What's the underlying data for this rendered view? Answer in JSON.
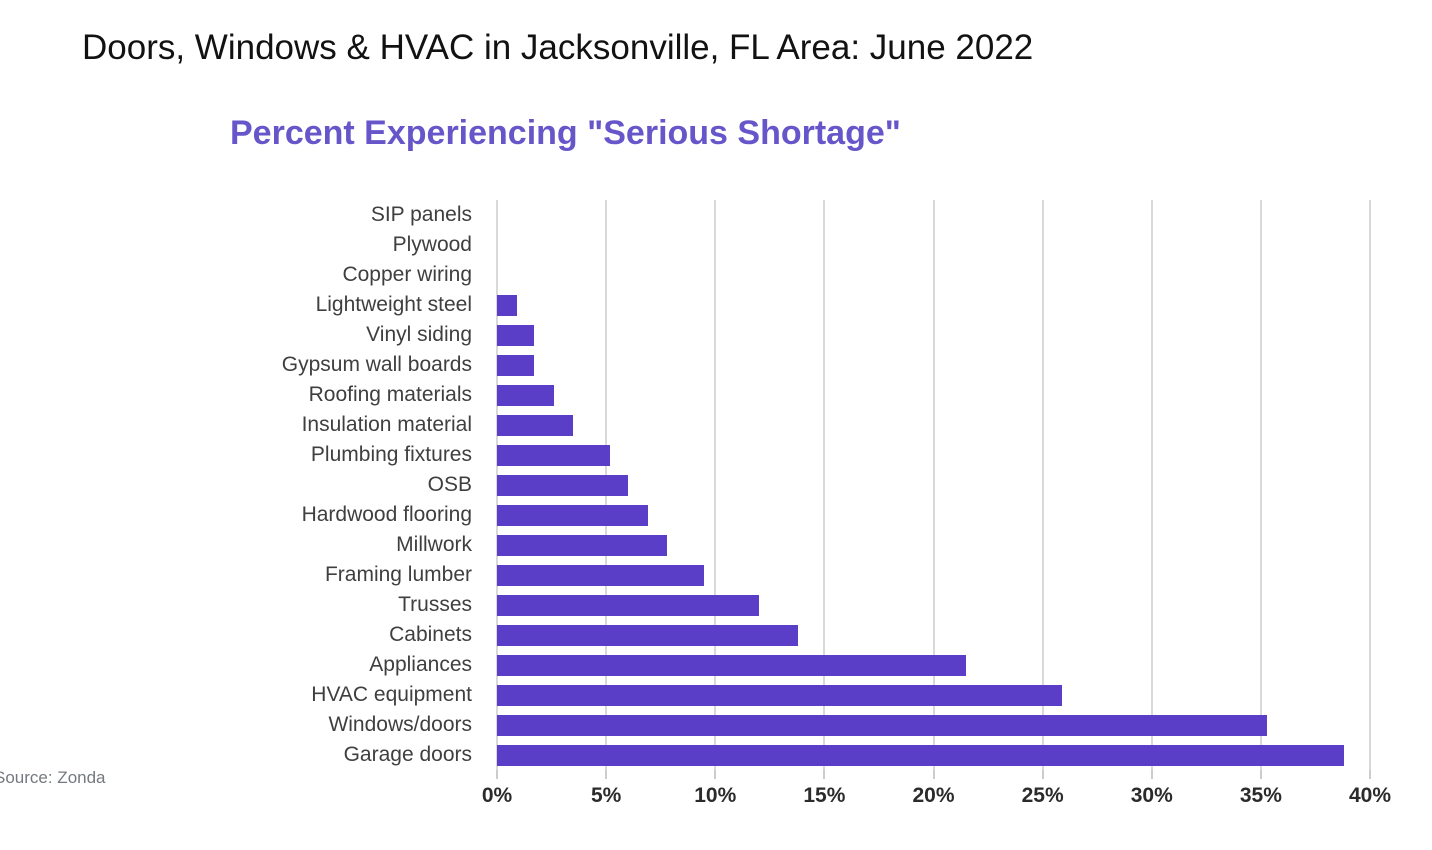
{
  "title": "Doors, Windows & HVAC in Jacksonville, FL Area: June 2022",
  "subtitle": "Percent Experiencing \"Serious Shortage\"",
  "source": "Source: Zonda",
  "colors": {
    "bar": "#5a3ec8",
    "subtitle": "#6656c9",
    "gridline": "#d9d9d9",
    "category_label": "#3f3f3f",
    "tick_label": "#2b2b2b",
    "source_text": "#75797f",
    "background": "#ffffff"
  },
  "chart_data": {
    "type": "bar",
    "orientation": "horizontal",
    "title": "Percent Experiencing \"Serious Shortage\"",
    "xlabel": "",
    "ylabel": "",
    "xlim": [
      0,
      40
    ],
    "grid": "vertical",
    "legend": "none",
    "x_tick_values": [
      0,
      5,
      10,
      15,
      20,
      25,
      30,
      35,
      40
    ],
    "x_tick_labels": [
      "0%",
      "5%",
      "10%",
      "15%",
      "20%",
      "25%",
      "30%",
      "35%",
      "40%"
    ],
    "categories": [
      "SIP panels",
      "Plywood",
      "Copper wiring",
      "Lightweight steel",
      "Vinyl siding",
      "Gypsum wall boards",
      "Roofing materials",
      "Insulation material",
      "Plumbing fixtures",
      "OSB",
      "Hardwood flooring",
      "Millwork",
      "Framing lumber",
      "Trusses",
      "Cabinets",
      "Appliances",
      "HVAC equipment",
      "Windows/doors",
      "Garage doors"
    ],
    "values": [
      0,
      0,
      0,
      0.9,
      1.7,
      1.7,
      2.6,
      3.5,
      5.2,
      6.0,
      6.9,
      7.8,
      9.5,
      12.0,
      13.8,
      21.5,
      25.9,
      35.3,
      38.8
    ],
    "units": "percent"
  }
}
